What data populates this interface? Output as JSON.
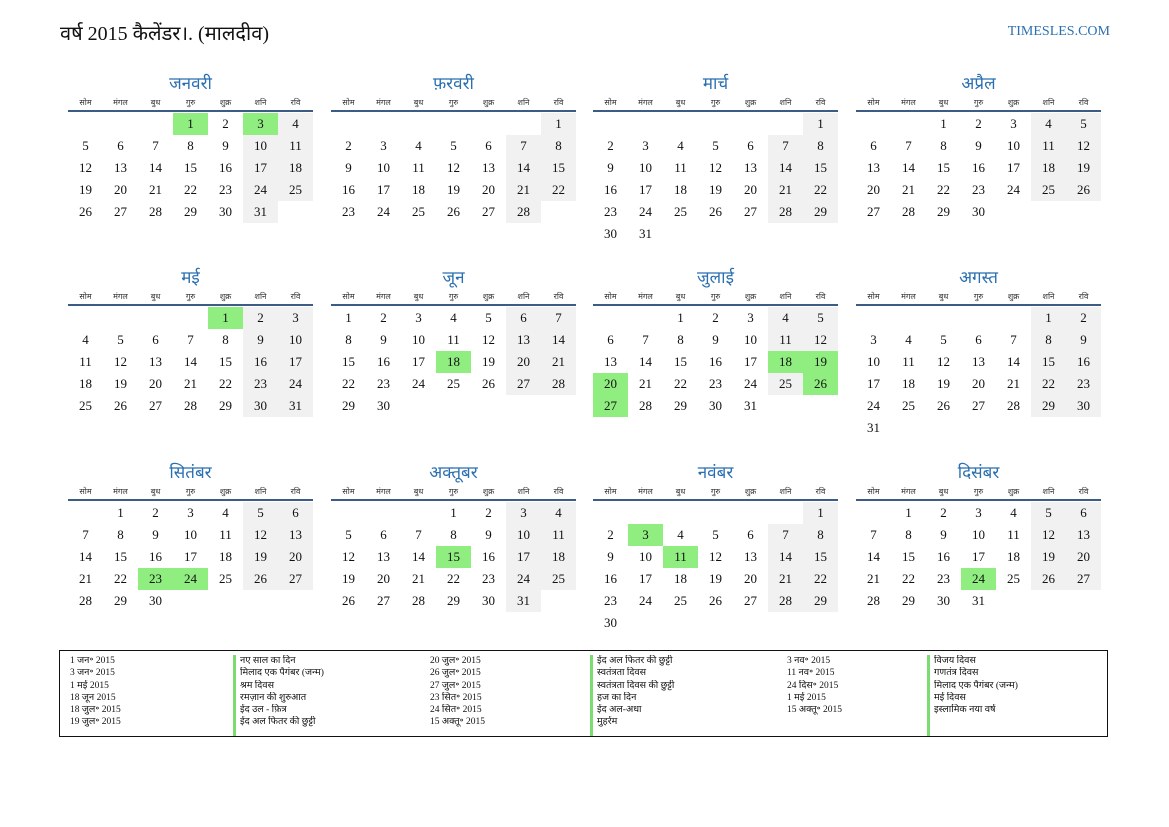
{
  "header": {
    "title": "वर्ष 2015 कैलेंडर।. (मालदीव)",
    "site": "TIMESLES.COM"
  },
  "weekdays": [
    "सोम",
    "मंगल",
    "बुध",
    "गुरु",
    "शुक्र",
    "शनि",
    "रवि"
  ],
  "months": [
    {
      "name": "जनवरी",
      "start": 3,
      "days": 31,
      "holidays": [
        1,
        3
      ]
    },
    {
      "name": "फ़रवरी",
      "start": 6,
      "days": 28,
      "holidays": []
    },
    {
      "name": "मार्च",
      "start": 6,
      "days": 31,
      "holidays": []
    },
    {
      "name": "अप्रैल",
      "start": 2,
      "days": 30,
      "holidays": []
    },
    {
      "name": "मई",
      "start": 4,
      "days": 31,
      "holidays": [
        1
      ]
    },
    {
      "name": "जून",
      "start": 0,
      "days": 30,
      "holidays": [
        18
      ]
    },
    {
      "name": "जुलाई",
      "start": 2,
      "days": 31,
      "holidays": [
        18,
        19,
        20,
        26,
        27
      ]
    },
    {
      "name": "अगस्त",
      "start": 5,
      "days": 31,
      "holidays": []
    },
    {
      "name": "सितंबर",
      "start": 1,
      "days": 30,
      "holidays": [
        23,
        24
      ]
    },
    {
      "name": "अक्तूबर",
      "start": 3,
      "days": 31,
      "holidays": [
        15
      ]
    },
    {
      "name": "नवंबर",
      "start": 6,
      "days": 30,
      "holidays": [
        3,
        11
      ]
    },
    {
      "name": "दिसंबर",
      "start": 1,
      "days": 31,
      "holidays": [
        24
      ]
    }
  ],
  "legend": [
    {
      "date": "1 जन॰ 2015",
      "name": "नए साल का दिन"
    },
    {
      "date": "3 जन॰ 2015",
      "name": "मिलाद एक पैगंबर (जन्म)"
    },
    {
      "date": "1 मई 2015",
      "name": "श्रम दिवस"
    },
    {
      "date": "18 जून 2015",
      "name": "रमज़ान की शुरुआत"
    },
    {
      "date": "18 जुल॰ 2015",
      "name": "ईद उल - फ़ित्र"
    },
    {
      "date": "19 जुल॰ 2015",
      "name": "ईद अल फितर की छुट्टी"
    },
    {
      "date": "20 जुल॰ 2015",
      "name": "ईद अल फितर की छुट्टी"
    },
    {
      "date": "26 जुल॰ 2015",
      "name": "स्वतंत्रता दिवस"
    },
    {
      "date": "27 जुल॰ 2015",
      "name": "स्वतंत्रता दिवस की छुट्टी"
    },
    {
      "date": "23 सित॰ 2015",
      "name": "हज का दिन"
    },
    {
      "date": "24 सित॰ 2015",
      "name": "ईद अल-अधा"
    },
    {
      "date": "15 अक्तू॰ 2015",
      "name": "मुहर्रम"
    },
    {
      "date": "3 नव॰ 2015",
      "name": "विजय दिवस"
    },
    {
      "date": "11 नव॰ 2015",
      "name": "गणतंत्र दिवस"
    },
    {
      "date": "24 दिस॰ 2015",
      "name": "मिलाद एक पैगंबर (जन्म)"
    },
    {
      "date": "1 मई 2015",
      "name": "मई दिवस"
    },
    {
      "date": "15 अक्तू॰ 2015",
      "name": "इस्लामिक नया वर्ष"
    }
  ]
}
